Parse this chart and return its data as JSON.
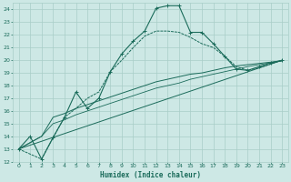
{
  "bg_color": "#cde8e5",
  "grid_color": "#a8cdc8",
  "line_color": "#1a6b5a",
  "xlabel": "Humidex (Indice chaleur)",
  "xlim": [
    -0.5,
    23.5
  ],
  "ylim": [
    12,
    24.5
  ],
  "yticks": [
    12,
    13,
    14,
    15,
    16,
    17,
    18,
    19,
    20,
    21,
    22,
    23,
    24
  ],
  "xticks": [
    0,
    1,
    2,
    3,
    4,
    5,
    6,
    7,
    8,
    9,
    10,
    11,
    12,
    13,
    14,
    15,
    16,
    17,
    18,
    19,
    20,
    21,
    22,
    23
  ],
  "line1_x": [
    0,
    1,
    2,
    3,
    4,
    5,
    6,
    7,
    8,
    9,
    10,
    11,
    12,
    13,
    14,
    15,
    16,
    17,
    18,
    19,
    20,
    21,
    22,
    23
  ],
  "line1_y": [
    13.0,
    14.0,
    12.2,
    13.9,
    15.5,
    17.5,
    16.2,
    17.0,
    19.1,
    20.5,
    21.5,
    22.3,
    24.1,
    24.3,
    24.3,
    22.2,
    22.2,
    21.3,
    20.3,
    19.3,
    19.2,
    19.5,
    19.8,
    20.0
  ],
  "line2_x": [
    0,
    2,
    3,
    4,
    5,
    6,
    7,
    8,
    9,
    10,
    11,
    12,
    13,
    14,
    15,
    16,
    17,
    18,
    19,
    20,
    21,
    22,
    23
  ],
  "line2_y": [
    13.0,
    12.2,
    13.9,
    15.5,
    16.2,
    17.0,
    17.5,
    19.1,
    20.0,
    21.0,
    21.9,
    22.3,
    22.3,
    22.2,
    21.8,
    21.3,
    21.0,
    20.3,
    19.5,
    19.2,
    19.4,
    19.7,
    20.0
  ],
  "line3_x": [
    0,
    23
  ],
  "line3_y": [
    13.0,
    20.0
  ],
  "line4_x": [
    0,
    2,
    3,
    4,
    5,
    6,
    7,
    8,
    9,
    10,
    11,
    12,
    13,
    14,
    15,
    16,
    17,
    18,
    19,
    20,
    21,
    22,
    23
  ],
  "line4_y": [
    13.0,
    14.0,
    15.5,
    15.8,
    16.2,
    16.5,
    16.8,
    17.1,
    17.4,
    17.7,
    18.0,
    18.3,
    18.5,
    18.7,
    18.9,
    19.0,
    19.2,
    19.4,
    19.55,
    19.65,
    19.75,
    19.85,
    19.95
  ],
  "line5_x": [
    0,
    2,
    3,
    4,
    5,
    6,
    7,
    8,
    9,
    10,
    11,
    12,
    13,
    14,
    15,
    16,
    17,
    18,
    19,
    20,
    21,
    22,
    23
  ],
  "line5_y": [
    13.0,
    14.0,
    15.0,
    15.3,
    15.7,
    16.0,
    16.3,
    16.6,
    16.9,
    17.2,
    17.5,
    17.8,
    18.0,
    18.2,
    18.5,
    18.7,
    18.9,
    19.1,
    19.3,
    19.5,
    19.65,
    19.8,
    19.95
  ]
}
